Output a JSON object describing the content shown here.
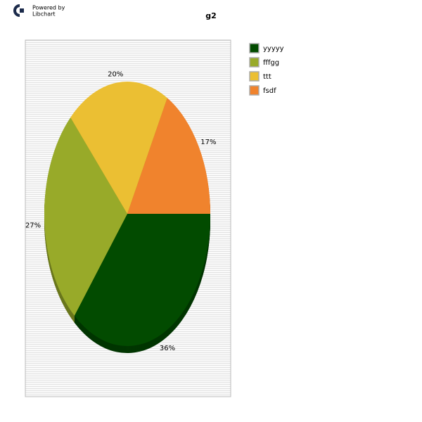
{
  "branding": {
    "line1": "Powered by",
    "line2": "Libchart"
  },
  "chart_data": {
    "type": "pie",
    "title": "g2",
    "categories": [
      "yyyyy",
      "fffgg",
      "ttt",
      "fsdf"
    ],
    "values": [
      36,
      27,
      20,
      17
    ],
    "value_labels": [
      "36%",
      "27%",
      "20%",
      "17%"
    ],
    "colors": [
      "#024b00",
      "#98aa29",
      "#ebbf33",
      "#f0832d"
    ],
    "legend": "right"
  }
}
